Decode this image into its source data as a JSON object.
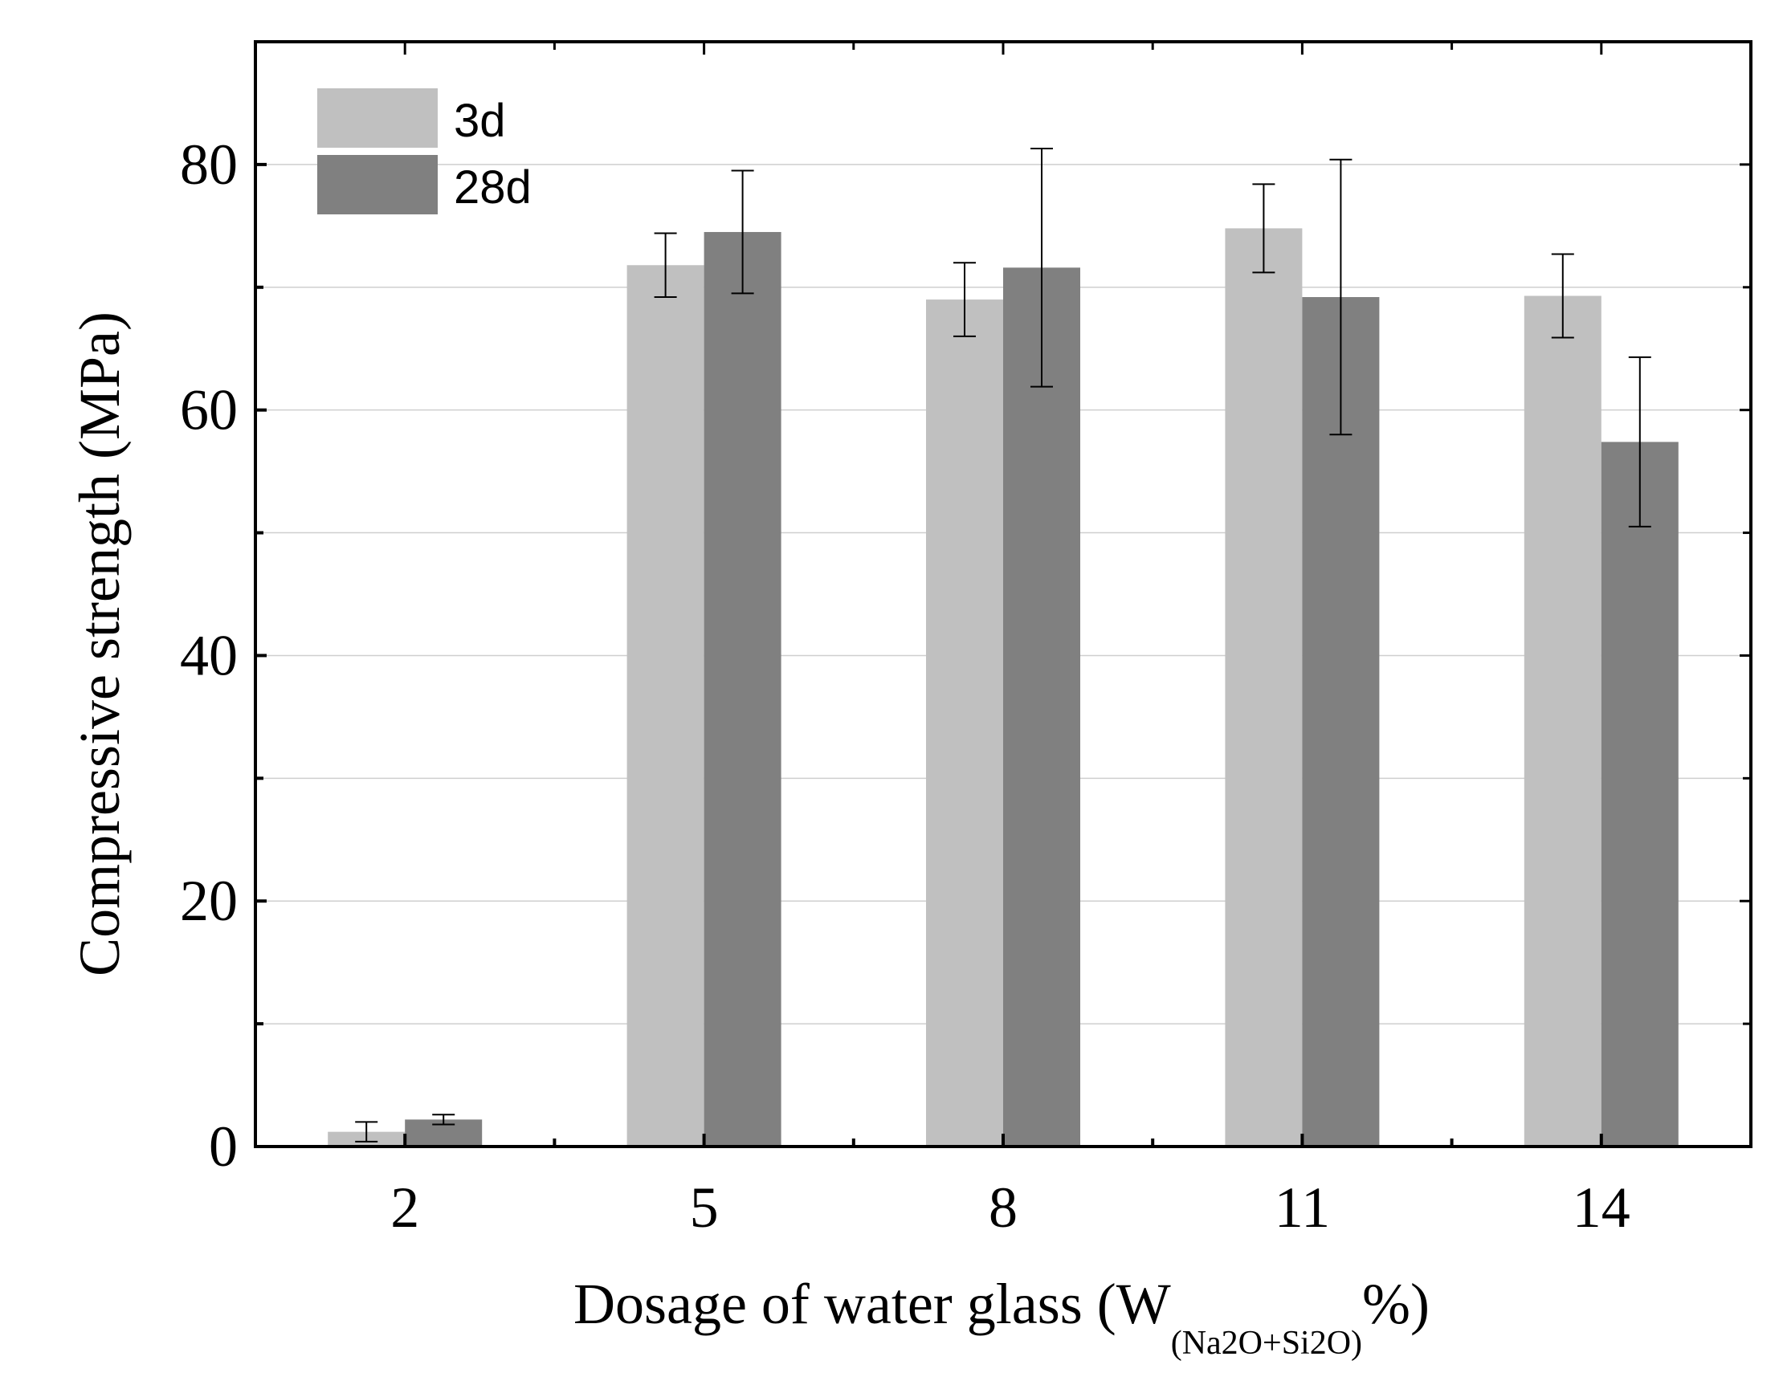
{
  "chart_data": {
    "type": "bar",
    "title": "",
    "categories": [
      "2",
      "5",
      "8",
      "11",
      "14"
    ],
    "series": [
      {
        "name": "3d",
        "color": "#c0c0c0",
        "values": [
          1.2,
          71.8,
          69.0,
          74.8,
          69.3
        ],
        "errors": [
          0.8,
          2.6,
          3.0,
          3.6,
          3.4
        ]
      },
      {
        "name": "28d",
        "color": "#808080",
        "values": [
          2.2,
          74.5,
          71.6,
          69.2,
          57.4
        ],
        "errors": [
          0.4,
          5.0,
          9.7,
          11.2,
          6.9
        ]
      }
    ],
    "xlabel": {
      "main": "Dosage of  water glass (W",
      "subscript": "(Na2O+Si2O)",
      "suffix": "%)"
    },
    "ylabel": "Compressive strength (MPa)",
    "ylim": [
      0,
      90
    ],
    "yticks": [
      "0",
      "20",
      "40",
      "60",
      "80"
    ],
    "grid": true,
    "legend_position": "top-left"
  }
}
